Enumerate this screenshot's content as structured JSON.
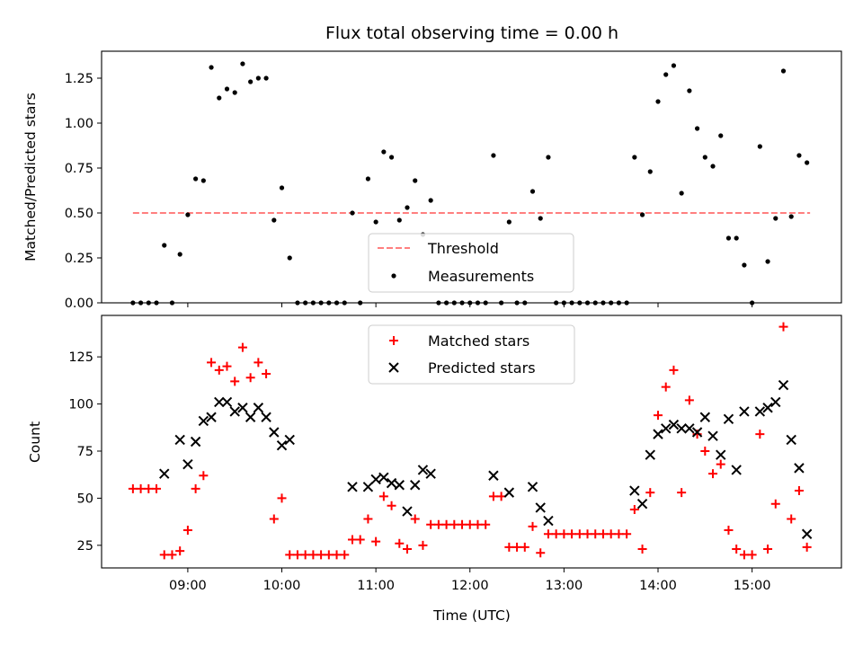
{
  "chart_data": [
    {
      "type": "scatter",
      "title": "Flux total observing time = 0.00 h",
      "xlabel": "",
      "ylabel": "Matched/Predicted stars",
      "ylim": [
        0,
        1.4
      ],
      "yticks": [
        "0.00",
        "0.25",
        "0.50",
        "0.75",
        "1.00",
        "1.25"
      ],
      "xlim": [
        "08:05",
        "15:57"
      ],
      "grid": false,
      "legend_position": "bottom-center",
      "threshold": {
        "name": "Threshold",
        "value": 0.5,
        "x_start": "08:25",
        "x_end": "15:37",
        "color": "#ff7f7f",
        "style": "dashed"
      },
      "series": [
        {
          "name": "Measurements",
          "color": "#000000",
          "marker": "dot",
          "points": [
            [
              "08:25",
              0
            ],
            [
              "08:30",
              0
            ],
            [
              "08:35",
              0
            ],
            [
              "08:40",
              0
            ],
            [
              "08:45",
              0.32
            ],
            [
              "08:50",
              0
            ],
            [
              "08:55",
              0.27
            ],
            [
              "09:00",
              0.49
            ],
            [
              "09:05",
              0.69
            ],
            [
              "09:10",
              0.68
            ],
            [
              "09:15",
              1.31
            ],
            [
              "09:20",
              1.14
            ],
            [
              "09:25",
              1.19
            ],
            [
              "09:30",
              1.17
            ],
            [
              "09:35",
              1.33
            ],
            [
              "09:40",
              1.23
            ],
            [
              "09:45",
              1.25
            ],
            [
              "09:50",
              1.25
            ],
            [
              "09:55",
              0.46
            ],
            [
              "10:00",
              0.64
            ],
            [
              "10:05",
              0.25
            ],
            [
              "10:10",
              0
            ],
            [
              "10:15",
              0
            ],
            [
              "10:20",
              0
            ],
            [
              "10:25",
              0
            ],
            [
              "10:30",
              0
            ],
            [
              "10:35",
              0
            ],
            [
              "10:40",
              0
            ],
            [
              "10:45",
              0.5
            ],
            [
              "10:50",
              0
            ],
            [
              "10:55",
              0.69
            ],
            [
              "11:00",
              0.45
            ],
            [
              "11:05",
              0.84
            ],
            [
              "11:10",
              0.81
            ],
            [
              "11:15",
              0.46
            ],
            [
              "11:20",
              0.53
            ],
            [
              "11:25",
              0.68
            ],
            [
              "11:30",
              0.38
            ],
            [
              "11:35",
              0.57
            ],
            [
              "11:40",
              0
            ],
            [
              "11:45",
              0
            ],
            [
              "11:50",
              0
            ],
            [
              "11:55",
              0
            ],
            [
              "12:00",
              0
            ],
            [
              "12:05",
              0
            ],
            [
              "12:10",
              0
            ],
            [
              "12:15",
              0.82
            ],
            [
              "12:20",
              0
            ],
            [
              "12:25",
              0.45
            ],
            [
              "12:30",
              0
            ],
            [
              "12:35",
              0
            ],
            [
              "12:40",
              0.62
            ],
            [
              "12:45",
              0.47
            ],
            [
              "12:50",
              0.81
            ],
            [
              "12:55",
              0
            ],
            [
              "13:00",
              0
            ],
            [
              "13:05",
              0
            ],
            [
              "13:10",
              0
            ],
            [
              "13:15",
              0
            ],
            [
              "13:20",
              0
            ],
            [
              "13:25",
              0
            ],
            [
              "13:30",
              0
            ],
            [
              "13:35",
              0
            ],
            [
              "13:40",
              0
            ],
            [
              "13:45",
              0.81
            ],
            [
              "13:50",
              0.49
            ],
            [
              "13:55",
              0.73
            ],
            [
              "14:00",
              1.12
            ],
            [
              "14:05",
              1.27
            ],
            [
              "14:10",
              1.32
            ],
            [
              "14:15",
              0.61
            ],
            [
              "14:20",
              1.18
            ],
            [
              "14:25",
              0.97
            ],
            [
              "14:30",
              0.81
            ],
            [
              "14:35",
              0.76
            ],
            [
              "14:40",
              0.93
            ],
            [
              "14:45",
              0.36
            ],
            [
              "14:50",
              0.36
            ],
            [
              "14:55",
              0.21
            ],
            [
              "15:00",
              0
            ],
            [
              "15:05",
              0.87
            ],
            [
              "15:10",
              0.23
            ],
            [
              "15:15",
              0.47
            ],
            [
              "15:20",
              1.29
            ],
            [
              "15:25",
              0.48
            ],
            [
              "15:30",
              0.82
            ],
            [
              "15:35",
              0.78
            ]
          ]
        }
      ]
    },
    {
      "type": "scatter",
      "title": "",
      "xlabel": "Time (UTC)",
      "ylabel": "Count",
      "ylim": [
        13,
        147
      ],
      "yticks": [
        "25",
        "50",
        "75",
        "100",
        "125"
      ],
      "xlim": [
        "08:05",
        "15:57"
      ],
      "xticks": [
        "09:00",
        "10:00",
        "11:00",
        "12:00",
        "13:00",
        "14:00",
        "15:00"
      ],
      "grid": false,
      "legend_position": "top-center",
      "series": [
        {
          "name": "Matched stars",
          "color": "#ff0000",
          "marker": "plus",
          "points": [
            [
              "08:25",
              55
            ],
            [
              "08:30",
              55
            ],
            [
              "08:35",
              55
            ],
            [
              "08:40",
              55
            ],
            [
              "08:45",
              20
            ],
            [
              "08:50",
              20
            ],
            [
              "08:55",
              22
            ],
            [
              "09:00",
              33
            ],
            [
              "09:05",
              55
            ],
            [
              "09:10",
              62
            ],
            [
              "09:15",
              122
            ],
            [
              "09:20",
              118
            ],
            [
              "09:25",
              120
            ],
            [
              "09:30",
              112
            ],
            [
              "09:35",
              130
            ],
            [
              "09:40",
              114
            ],
            [
              "09:45",
              122
            ],
            [
              "09:50",
              116
            ],
            [
              "09:55",
              39
            ],
            [
              "10:00",
              50
            ],
            [
              "10:05",
              20
            ],
            [
              "10:10",
              20
            ],
            [
              "10:15",
              20
            ],
            [
              "10:20",
              20
            ],
            [
              "10:25",
              20
            ],
            [
              "10:30",
              20
            ],
            [
              "10:35",
              20
            ],
            [
              "10:40",
              20
            ],
            [
              "10:45",
              28
            ],
            [
              "10:50",
              28
            ],
            [
              "10:55",
              39
            ],
            [
              "11:00",
              27
            ],
            [
              "11:05",
              51
            ],
            [
              "11:10",
              46
            ],
            [
              "11:15",
              26
            ],
            [
              "11:20",
              23
            ],
            [
              "11:25",
              39
            ],
            [
              "11:30",
              25
            ],
            [
              "11:35",
              36
            ],
            [
              "11:40",
              36
            ],
            [
              "11:45",
              36
            ],
            [
              "11:50",
              36
            ],
            [
              "11:55",
              36
            ],
            [
              "12:00",
              36
            ],
            [
              "12:05",
              36
            ],
            [
              "12:10",
              36
            ],
            [
              "12:15",
              51
            ],
            [
              "12:20",
              51
            ],
            [
              "12:25",
              24
            ],
            [
              "12:30",
              24
            ],
            [
              "12:35",
              24
            ],
            [
              "12:40",
              35
            ],
            [
              "12:45",
              21
            ],
            [
              "12:50",
              31
            ],
            [
              "12:55",
              31
            ],
            [
              "13:00",
              31
            ],
            [
              "13:05",
              31
            ],
            [
              "13:10",
              31
            ],
            [
              "13:15",
              31
            ],
            [
              "13:20",
              31
            ],
            [
              "13:25",
              31
            ],
            [
              "13:30",
              31
            ],
            [
              "13:35",
              31
            ],
            [
              "13:40",
              31
            ],
            [
              "13:45",
              44
            ],
            [
              "13:50",
              23
            ],
            [
              "13:55",
              53
            ],
            [
              "14:00",
              94
            ],
            [
              "14:05",
              109
            ],
            [
              "14:10",
              118
            ],
            [
              "14:15",
              53
            ],
            [
              "14:20",
              102
            ],
            [
              "14:25",
              84
            ],
            [
              "14:30",
              75
            ],
            [
              "14:35",
              63
            ],
            [
              "14:40",
              68
            ],
            [
              "14:45",
              33
            ],
            [
              "14:50",
              23
            ],
            [
              "14:55",
              20
            ],
            [
              "15:00",
              20
            ],
            [
              "15:05",
              84
            ],
            [
              "15:10",
              23
            ],
            [
              "15:15",
              47
            ],
            [
              "15:20",
              141
            ],
            [
              "15:25",
              39
            ],
            [
              "15:30",
              54
            ],
            [
              "15:35",
              24
            ]
          ]
        },
        {
          "name": "Predicted stars",
          "color": "#000000",
          "marker": "x",
          "points": [
            [
              "08:45",
              63
            ],
            [
              "08:55",
              81
            ],
            [
              "09:00",
              68
            ],
            [
              "09:05",
              80
            ],
            [
              "09:10",
              91
            ],
            [
              "09:15",
              93
            ],
            [
              "09:20",
              101
            ],
            [
              "09:25",
              101
            ],
            [
              "09:30",
              96
            ],
            [
              "09:35",
              98
            ],
            [
              "09:40",
              93
            ],
            [
              "09:45",
              98
            ],
            [
              "09:50",
              93
            ],
            [
              "09:55",
              85
            ],
            [
              "10:00",
              78
            ],
            [
              "10:05",
              81
            ],
            [
              "10:45",
              56
            ],
            [
              "10:55",
              56
            ],
            [
              "11:00",
              60
            ],
            [
              "11:05",
              61
            ],
            [
              "11:10",
              58
            ],
            [
              "11:15",
              57
            ],
            [
              "11:20",
              43
            ],
            [
              "11:25",
              57
            ],
            [
              "11:30",
              65
            ],
            [
              "11:35",
              63
            ],
            [
              "12:15",
              62
            ],
            [
              "12:25",
              53
            ],
            [
              "12:40",
              56
            ],
            [
              "12:45",
              45
            ],
            [
              "12:50",
              38
            ],
            [
              "13:45",
              54
            ],
            [
              "13:50",
              47
            ],
            [
              "13:55",
              73
            ],
            [
              "14:00",
              84
            ],
            [
              "14:05",
              87
            ],
            [
              "14:10",
              89
            ],
            [
              "14:15",
              87
            ],
            [
              "14:20",
              87
            ],
            [
              "14:25",
              85
            ],
            [
              "14:30",
              93
            ],
            [
              "14:35",
              83
            ],
            [
              "14:40",
              73
            ],
            [
              "14:45",
              92
            ],
            [
              "14:50",
              65
            ],
            [
              "14:55",
              96
            ],
            [
              "15:05",
              96
            ],
            [
              "15:10",
              98
            ],
            [
              "15:15",
              101
            ],
            [
              "15:20",
              110
            ],
            [
              "15:25",
              81
            ],
            [
              "15:30",
              66
            ],
            [
              "15:35",
              31
            ]
          ]
        }
      ]
    }
  ]
}
